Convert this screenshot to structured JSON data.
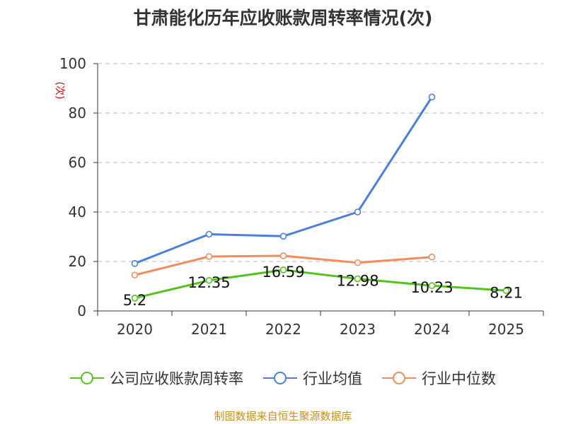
{
  "title": "甘肃能化历年应收账款周转率情况(次)",
  "source": "制图数据来自恒生聚源数据库",
  "colors": {
    "grid": "#c8c8c8",
    "axis": "#333333",
    "unit": "#d40000",
    "source": "#c8901a"
  },
  "chart_data": {
    "type": "line",
    "title": "甘肃能化历年应收账款周转率情况(次)",
    "ylabel": "(次)",
    "xlabel": "",
    "ylim": [
      0,
      100
    ],
    "yticks": [
      0,
      20,
      40,
      60,
      80,
      100
    ],
    "categories": [
      "2020",
      "2021",
      "2022",
      "2023",
      "2024",
      "2025"
    ],
    "grid": "horizontal dashed",
    "legend_position": "bottom",
    "series": [
      {
        "name": "公司应收账款周转率",
        "color": "#52c41a",
        "values": [
          5.2,
          12.35,
          16.59,
          12.98,
          10.23,
          8.21
        ],
        "labels": [
          "5.2",
          "12.35",
          "16.59",
          "12.98",
          "10.23",
          "8.21"
        ]
      },
      {
        "name": "行业均值",
        "color": "#4a7fdb",
        "values": [
          19.2,
          31.0,
          30.2,
          40.0,
          86.5,
          null
        ]
      },
      {
        "name": "行业中位数",
        "color": "#f28c5a",
        "values": [
          14.5,
          22.0,
          22.3,
          19.5,
          21.8,
          null
        ]
      }
    ]
  }
}
